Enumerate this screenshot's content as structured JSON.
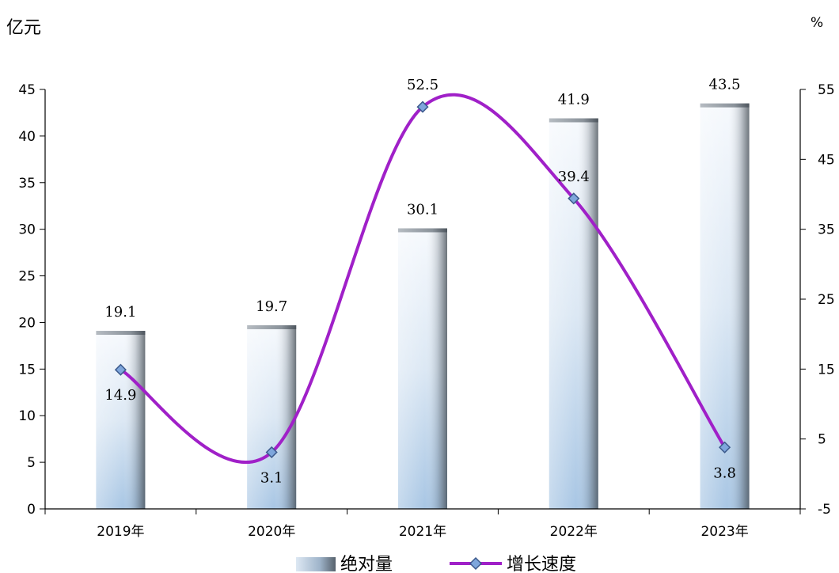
{
  "chart_data": {
    "type": "bar+line",
    "categories": [
      "2019年",
      "2020年",
      "2021年",
      "2022年",
      "2023年"
    ],
    "left_axis": {
      "unit": "亿元",
      "ylim": [
        0,
        45
      ],
      "ticks": [
        0,
        5,
        10,
        15,
        20,
        25,
        30,
        35,
        40,
        45
      ]
    },
    "right_axis": {
      "unit": "%",
      "ylim": [
        -5,
        55
      ],
      "ticks": [
        -5,
        5,
        15,
        25,
        35,
        45,
        55
      ]
    },
    "series": [
      {
        "name": "绝对量",
        "type": "bar",
        "axis": "left",
        "values": [
          19.1,
          19.7,
          30.1,
          41.9,
          43.5
        ],
        "labels": [
          "19.1",
          "19.7",
          "30.1",
          "41.9",
          "43.5"
        ]
      },
      {
        "name": "增长速度",
        "type": "line",
        "axis": "right",
        "smooth": true,
        "marker": "diamond",
        "color": "#a020c8",
        "values": [
          14.9,
          3.1,
          52.5,
          39.4,
          3.8
        ],
        "labels": [
          "14.9",
          "3.1",
          "52.5",
          "39.4",
          "3.8"
        ],
        "label_positions": [
          "below",
          "below",
          "above",
          "above",
          "below"
        ]
      }
    ],
    "grid": false,
    "legend": "bottom",
    "colors": {
      "bar_light": "#f4f8fc",
      "bar_mid": "#aac8e6",
      "bar_dark": "#6e8090",
      "line": "#a020c8",
      "marker_fill": "#7ea6dc",
      "marker_stroke": "#3c5a8c"
    }
  }
}
